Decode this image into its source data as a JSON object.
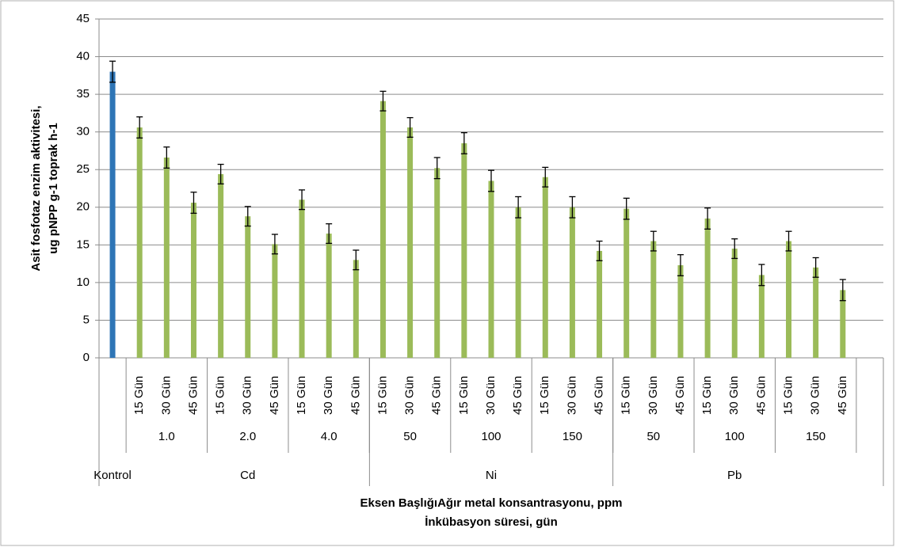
{
  "chart_data": {
    "type": "bar",
    "ylabel": [
      "Asit fosfotaz enzim aktivitesi,",
      "ug pNPP g-1 toprak h-1"
    ],
    "xlabel": [
      "Eksen BaşlığıAğır metal konsantrasyonu, ppm",
      "İnkübasyon süresi, gün"
    ],
    "ylim": [
      0,
      45
    ],
    "yticks": [
      0,
      5,
      10,
      15,
      20,
      25,
      30,
      35,
      40,
      45
    ],
    "grid": true,
    "groups": [
      {
        "label": "Kontrol",
        "color": "#2e75b6",
        "values": [
          38
        ],
        "errors": [
          1.4
        ]
      },
      {
        "label": "Cd",
        "color": "#9bbb59",
        "subgroups": [
          {
            "label": "1.0",
            "categories": [
              "15 Gün",
              "30 Gün",
              "45 Gün"
            ],
            "values": [
              30.6,
              26.6,
              20.6
            ],
            "errors": [
              1.4,
              1.4,
              1.4
            ]
          },
          {
            "label": "2.0",
            "categories": [
              "15 Gün",
              "30 Gün",
              "45 Gün"
            ],
            "values": [
              24.4,
              18.8,
              15.1
            ],
            "errors": [
              1.3,
              1.3,
              1.3
            ]
          },
          {
            "label": "4.0",
            "categories": [
              "15 Gün",
              "30 Gün",
              "45 Gün"
            ],
            "values": [
              21,
              16.5,
              13
            ],
            "errors": [
              1.3,
              1.3,
              1.3
            ]
          }
        ]
      },
      {
        "label": "Ni",
        "color": "#9bbb59",
        "subgroups": [
          {
            "label": "50",
            "categories": [
              "15 Gün",
              "30 Gün",
              "45 Gün"
            ],
            "values": [
              34.1,
              30.6,
              25.2
            ],
            "errors": [
              1.3,
              1.3,
              1.4
            ]
          },
          {
            "label": "100",
            "categories": [
              "15 Gün",
              "30 Gün",
              "45 Gün"
            ],
            "values": [
              28.5,
              23.5,
              20
            ],
            "errors": [
              1.4,
              1.4,
              1.4
            ]
          },
          {
            "label": "150",
            "categories": [
              "15 Gün",
              "30 Gün",
              "45 Gün"
            ],
            "values": [
              24,
              20,
              14.2
            ],
            "errors": [
              1.3,
              1.4,
              1.3
            ]
          }
        ]
      },
      {
        "label": "Pb",
        "color": "#9bbb59",
        "subgroups": [
          {
            "label": "50",
            "categories": [
              "15 Gün",
              "30 Gün",
              "45 Gün"
            ],
            "values": [
              19.8,
              15.5,
              12.3
            ],
            "errors": [
              1.4,
              1.3,
              1.4
            ]
          },
          {
            "label": "100",
            "categories": [
              "15 Gün",
              "30 Gün",
              "45 Gün"
            ],
            "values": [
              18.5,
              14.5,
              11
            ],
            "errors": [
              1.4,
              1.3,
              1.4
            ]
          },
          {
            "label": "150",
            "categories": [
              "15 Gün",
              "30 Gün",
              "45 Gün"
            ],
            "values": [
              15.5,
              12,
              9
            ],
            "errors": [
              1.3,
              1.3,
              1.4
            ]
          }
        ]
      }
    ]
  }
}
